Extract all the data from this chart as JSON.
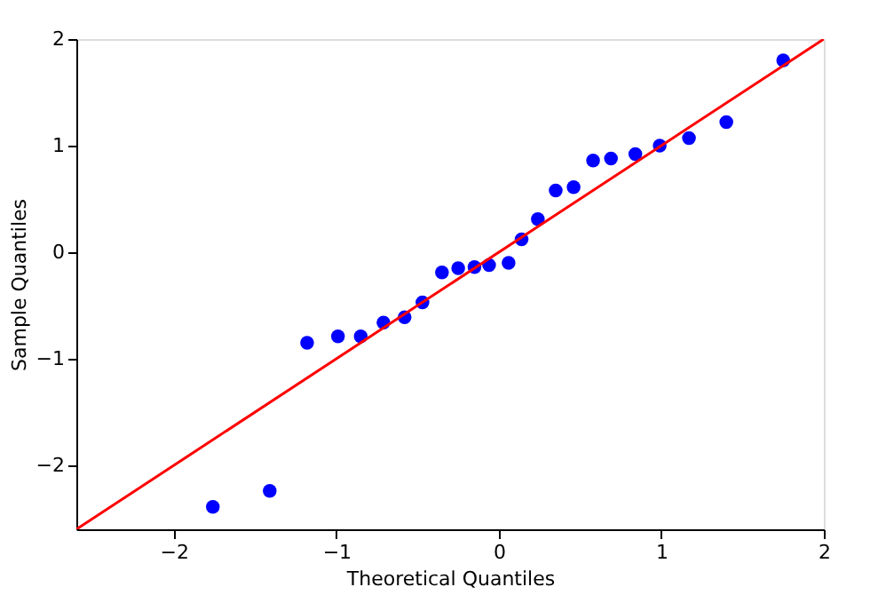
{
  "chart_data": {
    "type": "scatter",
    "xlabel": "Theoretical Quantiles",
    "ylabel": "Sample Quantiles",
    "xlim": [
      -2.6,
      2.0
    ],
    "ylim": [
      -2.6,
      2.0
    ],
    "xticks": [
      -2,
      -1,
      0,
      1,
      2
    ],
    "yticks": [
      -2,
      -1,
      0,
      1,
      2
    ],
    "grid": false,
    "series": [
      {
        "color": "#0000ff",
        "marker": "circle",
        "x": [
          -1.76,
          -1.41,
          -1.18,
          -0.99,
          -0.85,
          -0.71,
          -0.58,
          -0.47,
          -0.35,
          -0.25,
          -0.15,
          -0.06,
          0.06,
          0.14,
          0.24,
          0.35,
          0.46,
          0.58,
          0.69,
          0.84,
          0.99,
          1.17,
          1.4,
          1.75
        ],
        "values": [
          -2.39,
          -2.24,
          -0.85,
          -0.79,
          -0.79,
          -0.66,
          -0.61,
          -0.47,
          -0.19,
          -0.15,
          -0.14,
          -0.12,
          -0.1,
          0.12,
          0.31,
          0.58,
          0.61,
          0.86,
          0.88,
          0.92,
          1.0,
          1.07,
          1.22,
          1.8
        ]
      },
      {
        "type": "line",
        "color": "#ff0000",
        "line_style": "solid",
        "marker": "none",
        "x": [
          -2.6,
          2.0
        ],
        "values": [
          -2.6,
          2.0
        ]
      }
    ]
  }
}
